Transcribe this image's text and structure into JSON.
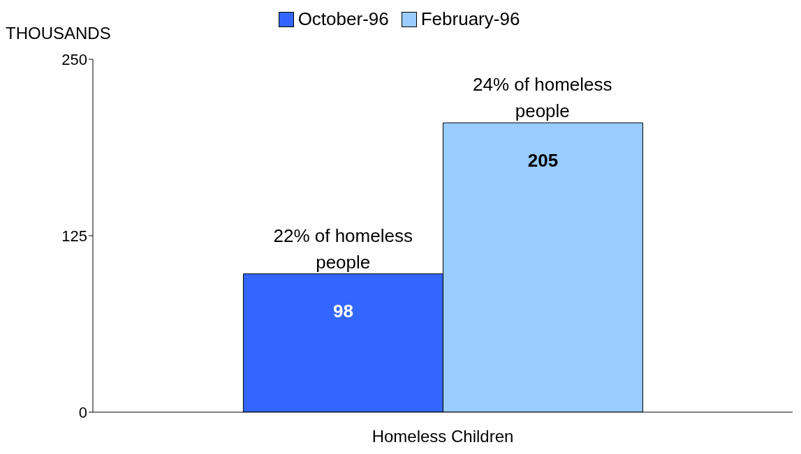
{
  "chart_data": {
    "type": "bar",
    "ylabel": "THOUSANDS",
    "categories": [
      "Homeless Children"
    ],
    "series": [
      {
        "name": "October-96",
        "color": "#3366ff",
        "values": [
          98
        ]
      },
      {
        "name": "February-96",
        "color": "#99ccff",
        "values": [
          205
        ]
      }
    ],
    "ylim": [
      0,
      250
    ],
    "yticks": [
      0,
      125,
      250
    ],
    "grid": false,
    "legend": "top",
    "data_labels": true,
    "annotations": [
      {
        "text": "22% of homeless people",
        "x": "Homeless Children",
        "y": 98
      },
      {
        "text": "24% of homeless people",
        "x": "Homeless Children",
        "y": 205
      }
    ]
  }
}
